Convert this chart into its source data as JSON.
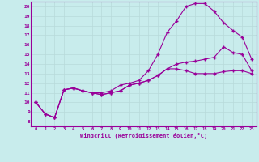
{
  "xlabel": "Windchill (Refroidissement éolien,°C)",
  "background_color": "#c8ecec",
  "line_color": "#990099",
  "grid_color": "#aadddd",
  "xlim": [
    -0.5,
    23.5
  ],
  "ylim": [
    7.5,
    20.5
  ],
  "yticks": [
    8,
    9,
    10,
    11,
    12,
    13,
    14,
    15,
    16,
    17,
    18,
    19,
    20
  ],
  "xticks": [
    0,
    1,
    2,
    3,
    4,
    5,
    6,
    7,
    8,
    9,
    10,
    11,
    12,
    13,
    14,
    15,
    16,
    17,
    18,
    19,
    20,
    21,
    22,
    23
  ],
  "curve1_x": [
    0,
    1,
    2,
    3,
    4,
    5,
    6,
    7,
    8,
    9,
    10,
    11,
    12,
    13,
    14,
    15,
    16,
    17,
    18,
    19,
    20,
    21,
    22,
    23
  ],
  "curve1_y": [
    10.0,
    8.8,
    8.4,
    11.3,
    11.5,
    11.2,
    11.0,
    11.0,
    11.2,
    11.8,
    12.0,
    12.3,
    13.3,
    15.0,
    17.3,
    18.5,
    20.0,
    20.3,
    20.3,
    19.5,
    18.3,
    17.5,
    16.8,
    14.5
  ],
  "curve2_x": [
    0,
    1,
    2,
    3,
    4,
    5,
    6,
    7,
    8,
    9,
    10,
    11,
    12,
    13,
    14,
    15,
    16,
    17,
    18,
    19,
    20,
    21,
    22,
    23
  ],
  "curve2_y": [
    10.0,
    8.8,
    8.4,
    11.3,
    11.5,
    11.2,
    11.0,
    10.8,
    11.0,
    11.2,
    11.8,
    12.0,
    12.3,
    12.8,
    13.5,
    14.0,
    14.2,
    14.3,
    14.5,
    14.7,
    15.8,
    15.2,
    15.0,
    13.3
  ],
  "curve3_x": [
    0,
    1,
    2,
    3,
    4,
    5,
    6,
    7,
    8,
    9,
    10,
    11,
    12,
    13,
    14,
    15,
    16,
    17,
    18,
    19,
    20,
    21,
    22,
    23
  ],
  "curve3_y": [
    10.0,
    8.8,
    8.4,
    11.3,
    11.5,
    11.2,
    11.0,
    10.8,
    11.0,
    11.2,
    11.8,
    12.0,
    12.3,
    12.8,
    13.5,
    13.5,
    13.3,
    13.0,
    13.0,
    13.0,
    13.2,
    13.3,
    13.3,
    13.0
  ]
}
